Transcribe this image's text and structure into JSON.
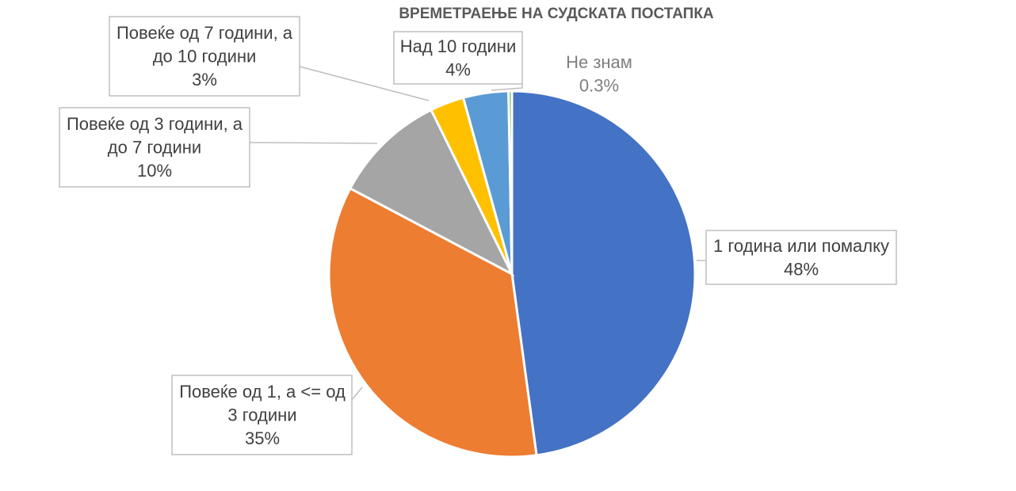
{
  "chart_data": {
    "type": "pie",
    "title": "ВРЕМЕТРАЕЊЕ НА СУДСКАТА ПОСТАПКА",
    "categories": [
      "1 година или помалку",
      "Повеќе од 1, а <= од 3 години",
      "Повеќе од 3 години, а до 7 години",
      "Повеќе од 7 години, а до 10 години",
      "Над 10 години",
      "Не знам"
    ],
    "values": [
      48,
      35,
      10,
      3,
      4,
      0.3
    ],
    "value_labels": [
      "48%",
      "35%",
      "10%",
      "3%",
      "4%",
      "0.3%"
    ],
    "colors": [
      "#4472c4",
      "#ed7d31",
      "#a5a5a5",
      "#ffc000",
      "#5b9bd5",
      "#70ad47"
    ],
    "legend": "none",
    "slice_labels": [
      {
        "lines": [
          "1 година или помалку"
        ],
        "value": "48%"
      },
      {
        "lines": [
          "Повеќе од 1, а <= од",
          "3 години"
        ],
        "value": "35%"
      },
      {
        "lines": [
          "Повеќе од 3 години, а",
          "до 7 години"
        ],
        "value": "10%"
      },
      {
        "lines": [
          "Повеќе од 7 години, а",
          "до 10 години"
        ],
        "value": "3%"
      },
      {
        "lines": [
          "Над 10 години"
        ],
        "value": "4%"
      },
      {
        "lines": [
          "Не знам"
        ],
        "value": "0.3%"
      }
    ]
  }
}
